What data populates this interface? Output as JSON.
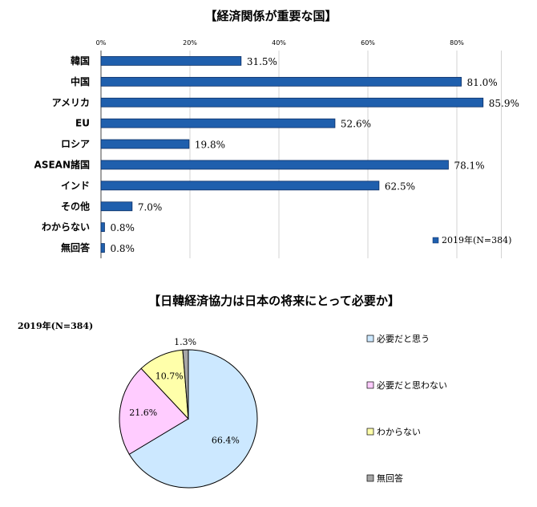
{
  "chart_data": [
    {
      "type": "bar",
      "orientation": "horizontal",
      "title": "【経済関係が重要な国】",
      "categories": [
        "韓国",
        "中国",
        "アメリカ",
        "EU",
        "ロシア",
        "ASEAN諸国",
        "インド",
        "その他",
        "わからない",
        "無回答"
      ],
      "series": [
        {
          "name": "2019年(N=384)",
          "values": [
            31.5,
            81.0,
            85.9,
            52.6,
            19.8,
            78.1,
            62.5,
            7.0,
            0.8,
            0.8
          ]
        }
      ],
      "value_labels": [
        "31.5%",
        "81.0%",
        "85.9%",
        "52.6%",
        "19.8%",
        "78.1%",
        "62.5%",
        "7.0%",
        "0.8%",
        "0.8%"
      ],
      "xticks": [
        "0%",
        "20%",
        "40%",
        "60%",
        "80%"
      ],
      "xlim": [
        0,
        90
      ],
      "grid": true,
      "legend_position": "bottom-right",
      "colors": {
        "bar": "#1f5fad",
        "bar_edge": "#0b2f66",
        "grid": "#c8c8c8"
      }
    },
    {
      "type": "pie",
      "title": "【日韓経済協力は日本の将来にとって必要か】",
      "subtitle": "2019年(N=384)",
      "labels": [
        "必要だと思う",
        "必要だと思わない",
        "わからない",
        "無回答"
      ],
      "values": [
        66.4,
        21.6,
        10.7,
        1.3
      ],
      "value_labels": [
        "66.4%",
        "21.6%",
        "10.7%",
        "1.3%"
      ],
      "colors": [
        "#cce8ff",
        "#ffccff",
        "#ffffaa",
        "#a6a6a6"
      ],
      "legend_position": "right"
    }
  ]
}
